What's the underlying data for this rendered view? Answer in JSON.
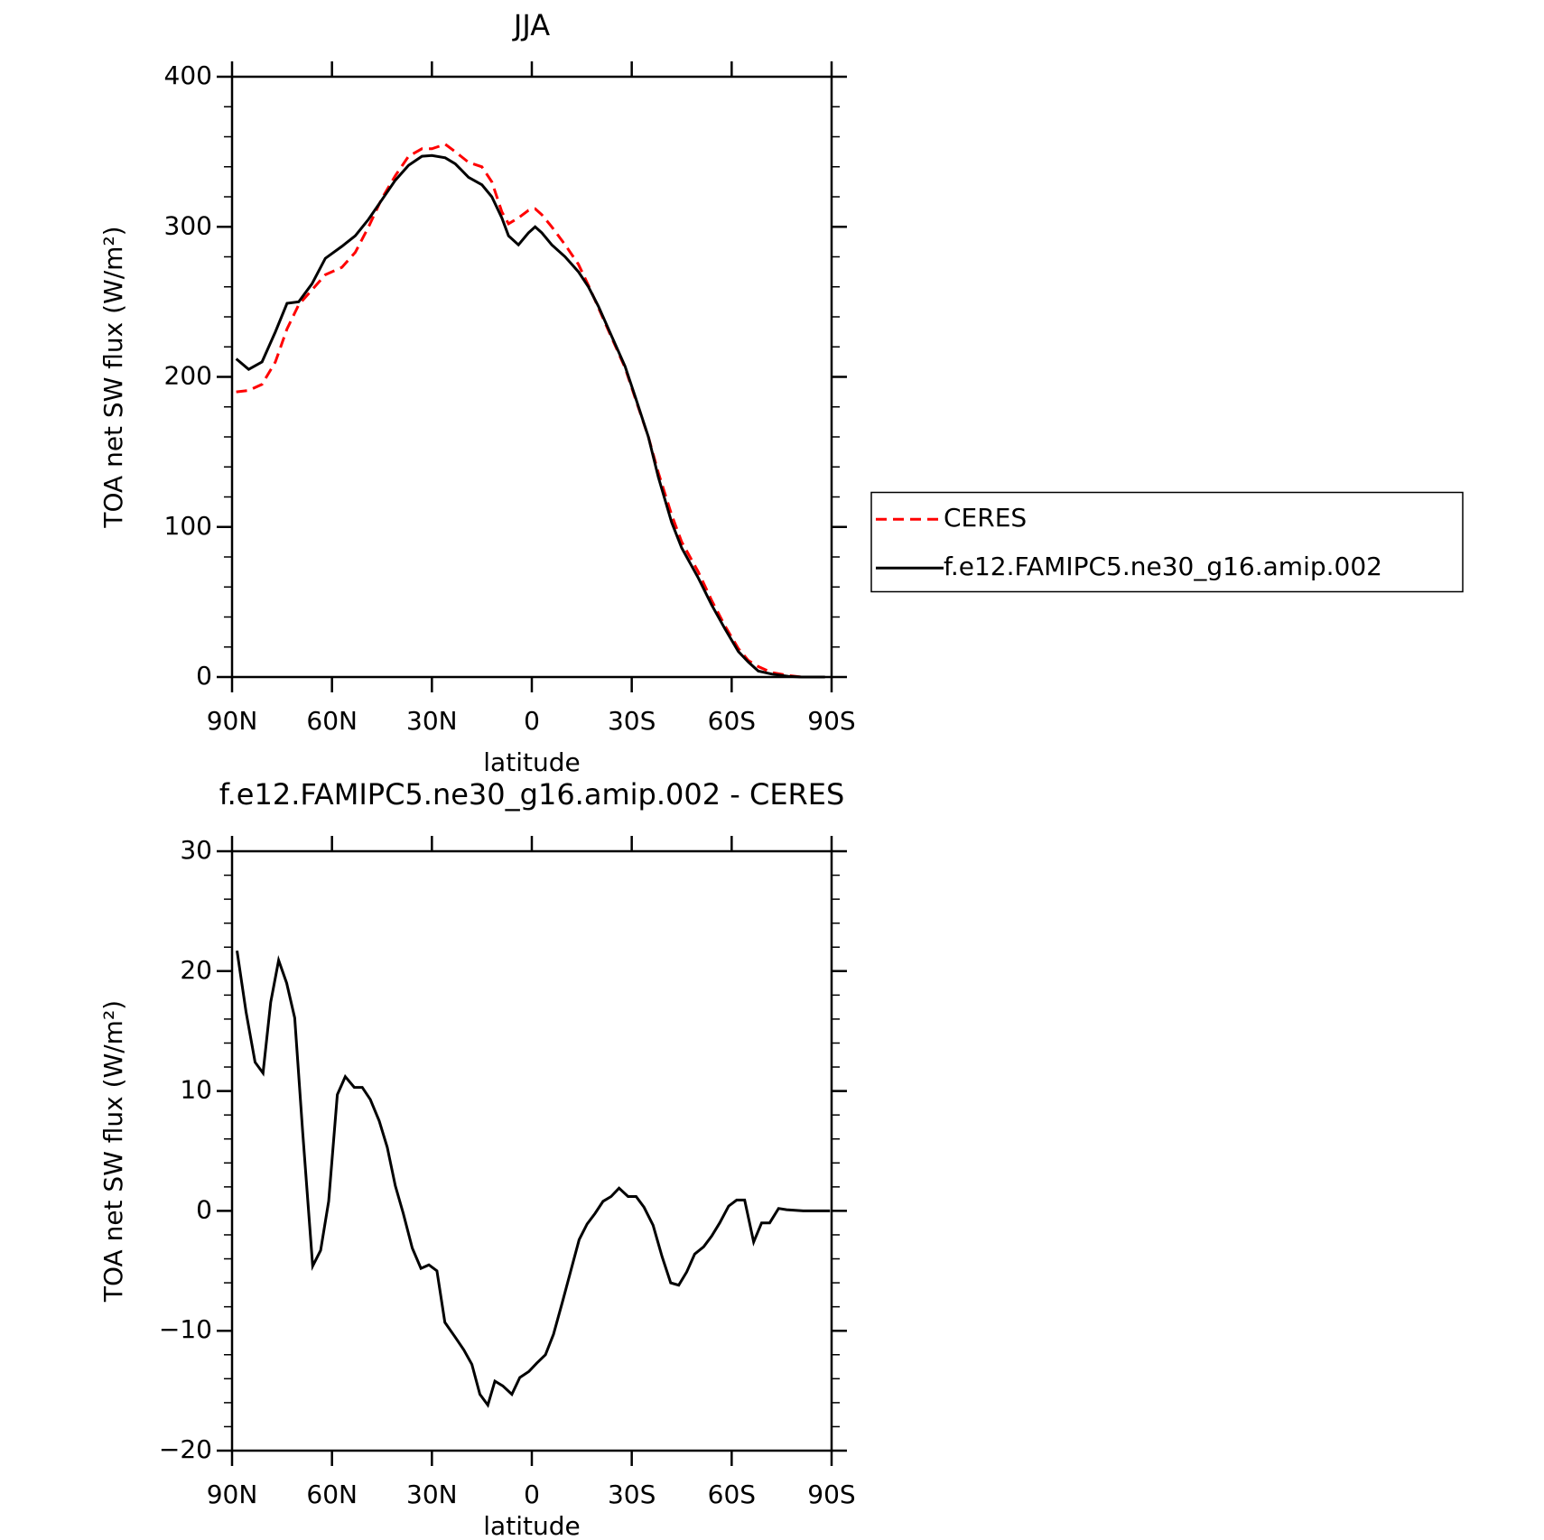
{
  "chart_data": [
    {
      "type": "line",
      "title": "JJA",
      "xlabel": "latitude",
      "ylabel": "TOA net SW flux (W/m²)",
      "x": [
        88.75,
        85,
        81,
        77,
        73.5,
        70,
        66,
        62,
        57,
        53,
        49,
        45,
        41,
        37,
        33,
        30,
        26,
        23,
        19,
        15,
        12,
        9,
        7,
        4,
        1,
        -1,
        -3,
        -6,
        -10,
        -14,
        -17,
        -20,
        -24,
        -28,
        -31,
        -35,
        -38,
        -42,
        -45,
        -50,
        -54,
        -58,
        -62,
        -65,
        -68,
        -72,
        -77,
        -81,
        -88
      ],
      "series": [
        {
          "name": "CERES",
          "color": "#ff0000",
          "linestyle": "dashed",
          "values": [
            190,
            191,
            195,
            210,
            232,
            248,
            258,
            268,
            273,
            283,
            300,
            319,
            334,
            347,
            352,
            352,
            355,
            350,
            343,
            340,
            330,
            310,
            302,
            306,
            311,
            312,
            308,
            300,
            288,
            275,
            261,
            246,
            226,
            206,
            186,
            160,
            136,
            108,
            90,
            70,
            51,
            34,
            19,
            11,
            7,
            3,
            1,
            0,
            0
          ]
        },
        {
          "name": "f.e12.FAMIPC5.ne30_g16.amip.002",
          "color": "#000000",
          "linestyle": "solid",
          "values": [
            212,
            205,
            210,
            230,
            249,
            250,
            262,
            279,
            287,
            294,
            305,
            318,
            331,
            341,
            347,
            347.5,
            346,
            342,
            333,
            328,
            320,
            306,
            294,
            288,
            296,
            300,
            296,
            288,
            280,
            270,
            260,
            247,
            227,
            207,
            187,
            160,
            133,
            103,
            86,
            66,
            48,
            32,
            17,
            10,
            4,
            2,
            0.5,
            0,
            0
          ]
        }
      ],
      "xlim": [
        90,
        -90
      ],
      "xticks": [
        {
          "value": 90,
          "label": "90N"
        },
        {
          "value": 60,
          "label": "60N"
        },
        {
          "value": 30,
          "label": "30N"
        },
        0,
        {
          "value": -30,
          "label": "30S"
        },
        {
          "value": -60,
          "label": "60S"
        },
        {
          "value": -90,
          "label": "90S"
        }
      ],
      "ylim": [
        0,
        400
      ],
      "yticks": [
        0,
        100,
        200,
        300,
        400
      ],
      "legend": "outside-right"
    },
    {
      "type": "line",
      "title": "f.e12.FAMIPC5.ne30_g16.amip.002 - CERES",
      "xlabel": "latitude",
      "ylabel": "TOA net SW flux (W/m²)",
      "x": [
        88.5,
        85.8,
        83.1,
        80.7,
        78.4,
        76,
        73.6,
        71.2,
        68.8,
        65.8,
        63.4,
        61,
        58.4,
        56,
        53.3,
        50.9,
        48.5,
        45.8,
        43.4,
        41,
        38.6,
        35.9,
        33.3,
        30.9,
        28.5,
        26.1,
        23.1,
        20.4,
        18,
        15.6,
        13.2,
        11.1,
        8.7,
        6,
        3.6,
        0.9,
        -1.5,
        -4.1,
        -6.5,
        -9.2,
        -11.6,
        -14.2,
        -16.6,
        -19,
        -21.4,
        -23.8,
        -26.2,
        -28.9,
        -31.3,
        -33.7,
        -36.4,
        -39.1,
        -41.7,
        -44.1,
        -46.5,
        -48.9,
        -51.6,
        -54,
        -56.4,
        -59.1,
        -61.5,
        -63.9,
        -66.6,
        -69,
        -71.4,
        -74.1,
        -76.5,
        -81.5,
        -89.5
      ],
      "values": [
        21.7,
        16.6,
        12.4,
        11.5,
        17.4,
        20.9,
        19.0,
        16.1,
        6.6,
        -4.6,
        -3.3,
        0.8,
        9.7,
        11.2,
        10.3,
        10.3,
        9.3,
        7.5,
        5.3,
        2.1,
        -0.2,
        -3.1,
        -4.8,
        -4.5,
        -5.0,
        -9.3,
        -10.5,
        -11.6,
        -12.8,
        -15.3,
        -16.2,
        -14.2,
        -14.6,
        -15.3,
        -13.9,
        -13.4,
        -12.7,
        -12.0,
        -10.3,
        -7.6,
        -5.1,
        -2.4,
        -1.1,
        -0.2,
        0.8,
        1.2,
        1.9,
        1.2,
        1.2,
        0.3,
        -1.2,
        -3.8,
        -6.0,
        -6.2,
        -5.1,
        -3.6,
        -3.0,
        -2.1,
        -1.0,
        0.4,
        0.9,
        0.9,
        -2.6,
        -1.0,
        -1.0,
        0.2,
        0.1,
        0.0,
        0.0
      ],
      "color": "#000000",
      "xlim": [
        90,
        -90
      ],
      "xticks": [
        {
          "value": 90,
          "label": "90N"
        },
        {
          "value": 60,
          "label": "60N"
        },
        {
          "value": 30,
          "label": "30N"
        },
        0,
        {
          "value": -30,
          "label": "30S"
        },
        {
          "value": -60,
          "label": "60S"
        },
        {
          "value": -90,
          "label": "90S"
        }
      ],
      "ylim": [
        -20,
        30
      ],
      "yticks": [
        {
          "value": -20,
          "label": "−20"
        },
        {
          "value": -10,
          "label": "−10"
        },
        0,
        10,
        20,
        30
      ]
    }
  ]
}
